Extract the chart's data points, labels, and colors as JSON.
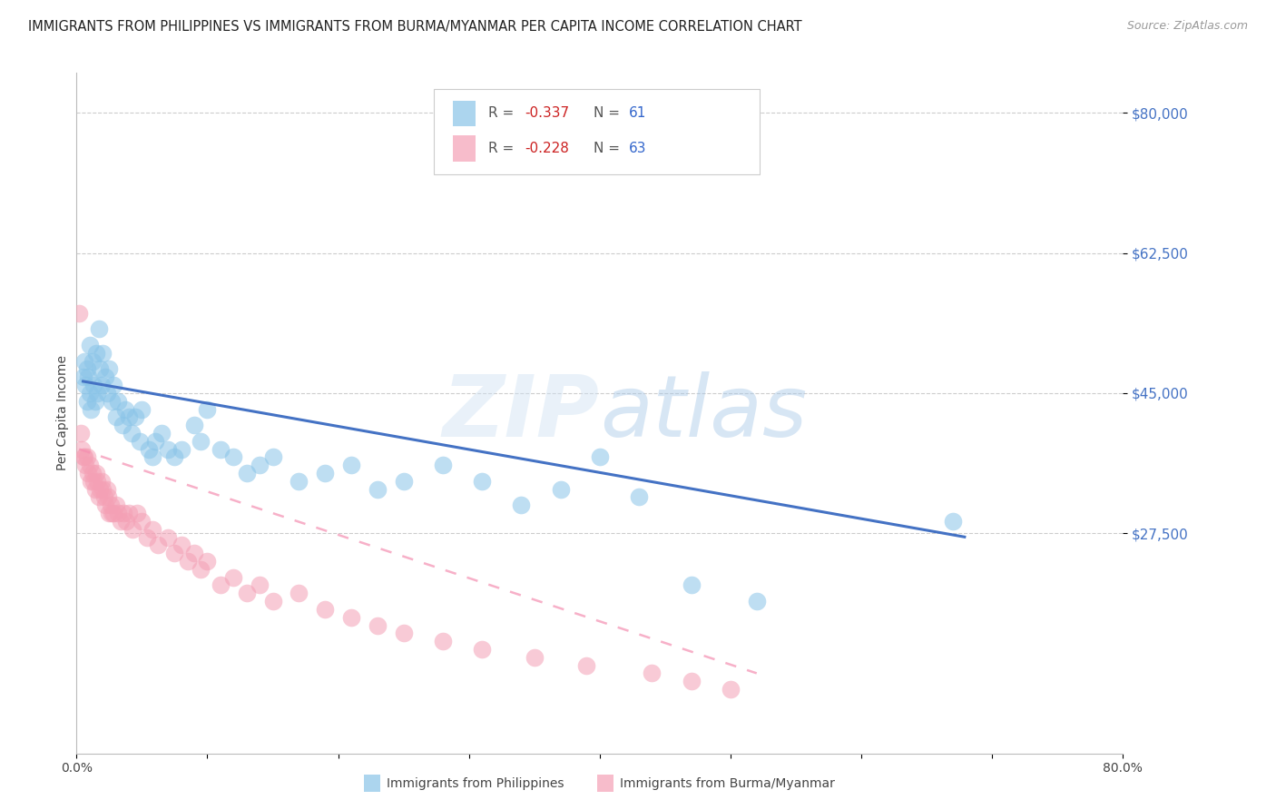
{
  "title": "IMMIGRANTS FROM PHILIPPINES VS IMMIGRANTS FROM BURMA/MYANMAR PER CAPITA INCOME CORRELATION CHART",
  "source": "Source: ZipAtlas.com",
  "ylabel": "Per Capita Income",
  "ymin": 0,
  "ymax": 85000,
  "xmin": 0.0,
  "xmax": 0.8,
  "watermark": "ZIPatlas",
  "philippines_color": "#89c4e8",
  "burma_color": "#f4a0b5",
  "philippines_line_color": "#4472c4",
  "burma_line_color": "#f48fb1",
  "ytick_vals": [
    27500,
    45000,
    62500,
    80000
  ],
  "ytick_labels": [
    "$27,500",
    "$45,000",
    "$62,500",
    "$80,000"
  ],
  "legend_r1": "-0.337",
  "legend_n1": "61",
  "legend_r2": "-0.228",
  "legend_n2": "63",
  "footer_label1": "Immigrants from Philippines",
  "footer_label2": "Immigrants from Burma/Myanmar",
  "philippines_x": [
    0.005,
    0.006,
    0.007,
    0.008,
    0.008,
    0.009,
    0.01,
    0.01,
    0.011,
    0.012,
    0.013,
    0.014,
    0.015,
    0.016,
    0.017,
    0.018,
    0.019,
    0.02,
    0.022,
    0.023,
    0.025,
    0.027,
    0.028,
    0.03,
    0.032,
    0.035,
    0.037,
    0.04,
    0.042,
    0.045,
    0.048,
    0.05,
    0.055,
    0.058,
    0.06,
    0.065,
    0.07,
    0.075,
    0.08,
    0.09,
    0.095,
    0.1,
    0.11,
    0.12,
    0.13,
    0.14,
    0.15,
    0.17,
    0.19,
    0.21,
    0.23,
    0.25,
    0.28,
    0.31,
    0.34,
    0.37,
    0.4,
    0.43,
    0.47,
    0.52,
    0.67
  ],
  "philippines_y": [
    47000,
    49000,
    46000,
    48000,
    44000,
    47000,
    45000,
    51000,
    43000,
    49000,
    46000,
    44000,
    50000,
    45000,
    53000,
    48000,
    46000,
    50000,
    47000,
    45000,
    48000,
    44000,
    46000,
    42000,
    44000,
    41000,
    43000,
    42000,
    40000,
    42000,
    39000,
    43000,
    38000,
    37000,
    39000,
    40000,
    38000,
    37000,
    38000,
    41000,
    39000,
    43000,
    38000,
    37000,
    35000,
    36000,
    37000,
    34000,
    35000,
    36000,
    33000,
    34000,
    36000,
    34000,
    31000,
    33000,
    37000,
    32000,
    21000,
    19000,
    29000
  ],
  "burma_x": [
    0.002,
    0.003,
    0.004,
    0.005,
    0.006,
    0.007,
    0.008,
    0.009,
    0.01,
    0.011,
    0.012,
    0.013,
    0.014,
    0.015,
    0.016,
    0.017,
    0.018,
    0.019,
    0.02,
    0.021,
    0.022,
    0.023,
    0.024,
    0.025,
    0.026,
    0.027,
    0.028,
    0.03,
    0.032,
    0.034,
    0.036,
    0.038,
    0.04,
    0.043,
    0.046,
    0.05,
    0.054,
    0.058,
    0.062,
    0.07,
    0.075,
    0.08,
    0.085,
    0.09,
    0.095,
    0.1,
    0.11,
    0.12,
    0.13,
    0.14,
    0.15,
    0.17,
    0.19,
    0.21,
    0.23,
    0.25,
    0.28,
    0.31,
    0.35,
    0.39,
    0.44,
    0.47,
    0.5
  ],
  "burma_y": [
    55000,
    40000,
    38000,
    37000,
    37000,
    36000,
    37000,
    35000,
    36000,
    34000,
    35000,
    34000,
    33000,
    35000,
    34000,
    32000,
    33000,
    34000,
    33000,
    32000,
    31000,
    33000,
    32000,
    30000,
    31000,
    30000,
    30000,
    31000,
    30000,
    29000,
    30000,
    29000,
    30000,
    28000,
    30000,
    29000,
    27000,
    28000,
    26000,
    27000,
    25000,
    26000,
    24000,
    25000,
    23000,
    24000,
    21000,
    22000,
    20000,
    21000,
    19000,
    20000,
    18000,
    17000,
    16000,
    15000,
    14000,
    13000,
    12000,
    11000,
    10000,
    9000,
    8000
  ]
}
